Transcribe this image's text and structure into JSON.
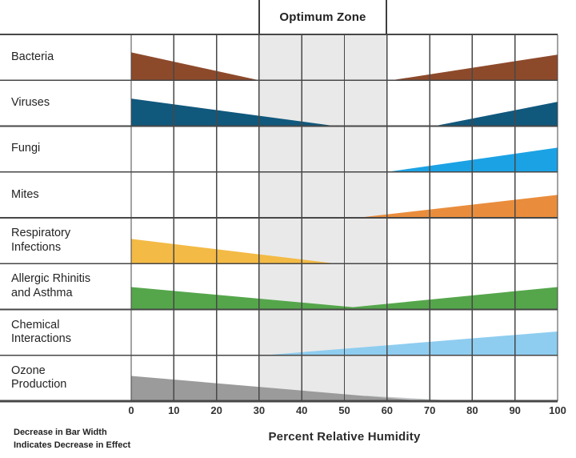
{
  "chart_data": {
    "type": "area",
    "variant": "sterling-relative-humidity-effects",
    "optimum_zone": {
      "label": "Optimum Zone",
      "from": 30,
      "to": 60,
      "fill": "#e9e9e9"
    },
    "x_axis": {
      "label": "Percent Relative Humidity",
      "min": 0,
      "max": 100,
      "ticks": [
        0,
        10,
        20,
        30,
        40,
        50,
        60,
        70,
        80,
        90,
        100
      ]
    },
    "rows": [
      {
        "label": "Bacteria",
        "lines": [
          "Bacteria"
        ],
        "color": "#8d4a2b",
        "shapes": [
          {
            "kind": "wedge",
            "from": 0,
            "to": 30,
            "tall_end": "left",
            "height_frac": 0.61
          },
          {
            "kind": "wedge",
            "from": 61,
            "to": 100,
            "tall_end": "right",
            "height_frac": 0.56
          }
        ]
      },
      {
        "label": "Viruses",
        "lines": [
          "Viruses"
        ],
        "color": "#11587d",
        "shapes": [
          {
            "kind": "wedge",
            "from": 0,
            "to": 48,
            "tall_end": "left",
            "height_frac": 0.6
          },
          {
            "kind": "wedge",
            "from": 71,
            "to": 100,
            "tall_end": "right",
            "height_frac": 0.53
          }
        ]
      },
      {
        "label": "Fungi",
        "lines": [
          "Fungi"
        ],
        "color": "#1ba2e4",
        "shapes": [
          {
            "kind": "wedge",
            "from": 60,
            "to": 100,
            "tall_end": "right",
            "height_frac": 0.53
          }
        ]
      },
      {
        "label": "Mites",
        "lines": [
          "Mites"
        ],
        "color": "#e98d3d",
        "shapes": [
          {
            "kind": "wedge",
            "from": 53,
            "to": 100,
            "tall_end": "right",
            "height_frac": 0.5
          }
        ]
      },
      {
        "label": "Respiratory Infections",
        "lines": [
          "Respiratory",
          "Infections"
        ],
        "color": "#f3ba45",
        "shapes": [
          {
            "kind": "wedge",
            "from": 0,
            "to": 48,
            "tall_end": "left",
            "height_frac": 0.54
          }
        ]
      },
      {
        "label": "Allergic Rhinitis and Asthma",
        "lines": [
          "Allergic Rhinitis",
          "and Asthma"
        ],
        "color": "#55a64b",
        "shapes": [
          {
            "kind": "valley",
            "from": 0,
            "to": 100,
            "min_at": 52,
            "height_frac": 0.49,
            "min_height_frac": 0.05
          }
        ]
      },
      {
        "label": "Chemical Interactions",
        "lines": [
          "Chemical",
          "Interactions"
        ],
        "color": "#8ecdf0",
        "shapes": [
          {
            "kind": "wedge",
            "from": 31,
            "to": 100,
            "tall_end": "right",
            "height_frac": 0.52
          }
        ]
      },
      {
        "label": "Ozone Production",
        "lines": [
          "Ozone",
          "Production"
        ],
        "color": "#9b9b9b",
        "shapes": [
          {
            "kind": "wedge",
            "from": 55,
            "to": 78,
            "tall_end": "left",
            "height_frac": 0.12,
            "color": "#c7c9ca"
          },
          {
            "kind": "wedge",
            "from": 0,
            "to": 69,
            "tall_end": "left",
            "height_frac": 0.55
          }
        ]
      }
    ],
    "footnote": {
      "line1": "Decrease in Bar Width",
      "line2": "Indicates Decrease in Effect"
    }
  },
  "style": {
    "grid_color": "#474747",
    "zone_border_color": "#3f3f3f",
    "background": "#ffffff"
  }
}
